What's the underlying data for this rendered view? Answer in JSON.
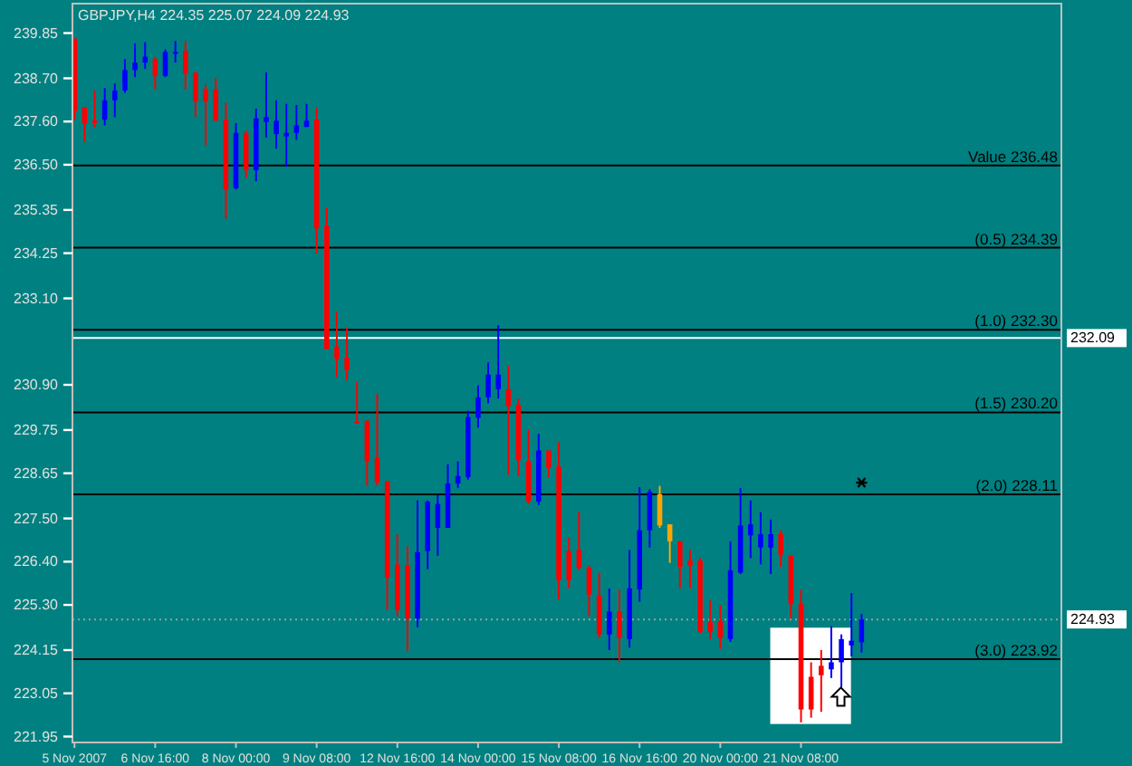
{
  "chart_data": {
    "type": "candlestick",
    "title": "GBPJPY,H4  224.35 225.07 224.09 224.93",
    "categories": [
      "5 Nov 2007",
      null,
      null,
      null,
      null,
      null,
      null,
      null,
      "6 Nov 16:00",
      null,
      null,
      null,
      null,
      null,
      null,
      null,
      "8 Nov 00:00",
      null,
      null,
      null,
      null,
      null,
      null,
      null,
      "9 Nov 08:00",
      null,
      null,
      null,
      null,
      null,
      null,
      null,
      "12 Nov 16:00",
      null,
      null,
      null,
      null,
      null,
      null,
      null,
      "14 Nov 00:00",
      null,
      null,
      null,
      null,
      null,
      null,
      null,
      "15 Nov 08:00",
      null,
      null,
      null,
      null,
      null,
      null,
      null,
      "16 Nov 16:00",
      null,
      null,
      null,
      null,
      null,
      null,
      null,
      "20 Nov 00:00",
      null,
      null,
      null,
      null,
      null,
      null,
      null,
      "21 Nov 08:00",
      null,
      null,
      null,
      null,
      null,
      null
    ],
    "ohlc": [
      [
        239.71,
        239.71,
        237.64,
        237.87
      ],
      [
        237.96,
        237.96,
        237.08,
        237.54
      ],
      [
        237.62,
        238.39,
        237.46,
        237.56
      ],
      [
        237.65,
        238.45,
        237.5,
        238.14
      ],
      [
        238.14,
        238.57,
        237.71,
        238.39
      ],
      [
        238.39,
        239.19,
        238.33,
        238.91
      ],
      [
        238.91,
        239.59,
        238.73,
        239.1
      ],
      [
        239.1,
        239.62,
        238.94,
        239.25
      ],
      [
        239.19,
        239.25,
        238.42,
        238.76
      ],
      [
        238.76,
        239.43,
        238.73,
        239.37
      ],
      [
        239.36,
        239.65,
        239.1,
        239.37
      ],
      [
        239.4,
        239.65,
        238.42,
        238.82
      ],
      [
        238.85,
        238.85,
        237.71,
        238.11
      ],
      [
        238.42,
        238.54,
        237.0,
        238.11
      ],
      [
        238.42,
        238.7,
        237.62,
        237.62
      ],
      [
        237.65,
        238.08,
        235.13,
        235.87
      ],
      [
        235.9,
        237.56,
        235.87,
        237.31
      ],
      [
        237.31,
        237.37,
        236.17,
        236.36
      ],
      [
        236.36,
        237.93,
        236.08,
        237.68
      ],
      [
        237.59,
        238.85,
        237.19,
        237.71
      ],
      [
        237.28,
        238.14,
        236.91,
        237.62
      ],
      [
        237.22,
        238.05,
        236.45,
        237.31
      ],
      [
        237.31,
        238.02,
        237.13,
        237.5
      ],
      [
        237.46,
        238.05,
        237.46,
        237.62
      ],
      [
        237.65,
        237.96,
        234.24,
        234.88
      ],
      [
        234.95,
        235.41,
        231.81,
        231.81
      ],
      [
        231.87,
        232.76,
        231.1,
        231.56
      ],
      [
        231.59,
        232.36,
        231.01,
        231.28
      ],
      [
        229.96,
        230.98,
        229.93,
        229.93
      ],
      [
        229.99,
        229.99,
        228.33,
        228.95
      ],
      [
        229.04,
        230.67,
        228.33,
        228.42
      ],
      [
        228.45,
        228.45,
        225.17,
        225.99
      ],
      [
        226.33,
        227.1,
        225.01,
        225.17
      ],
      [
        226.3,
        226.79,
        224.12,
        224.95
      ],
      [
        224.95,
        227.96,
        224.73,
        226.64
      ],
      [
        226.67,
        227.96,
        226.21,
        227.93
      ],
      [
        227.26,
        228.09,
        226.55,
        227.87
      ],
      [
        227.26,
        228.88,
        227.26,
        228.39
      ],
      [
        228.39,
        228.95,
        228.27,
        228.58
      ],
      [
        228.55,
        230.24,
        228.49,
        230.08
      ],
      [
        230.06,
        230.89,
        229.81,
        230.58
      ],
      [
        230.58,
        231.47,
        230.43,
        231.16
      ],
      [
        230.79,
        232.42,
        230.55,
        231.16
      ],
      [
        230.79,
        231.38,
        228.61,
        230.36
      ],
      [
        230.39,
        230.55,
        228.58,
        228.98
      ],
      [
        228.95,
        229.75,
        227.87,
        227.93
      ],
      [
        227.93,
        229.65,
        227.84,
        229.23
      ],
      [
        229.23,
        229.23,
        228.55,
        228.79
      ],
      [
        228.82,
        229.44,
        225.44,
        225.93
      ],
      [
        226.67,
        227.01,
        225.72,
        225.93
      ],
      [
        226.7,
        227.66,
        226.18,
        226.24
      ],
      [
        226.24,
        226.3,
        225.01,
        225.56
      ],
      [
        225.54,
        226.12,
        224.46,
        224.55
      ],
      [
        224.55,
        225.72,
        224.15,
        225.13
      ],
      [
        225.13,
        225.69,
        223.84,
        224.46
      ],
      [
        224.43,
        226.7,
        224.21,
        225.72
      ],
      [
        225.69,
        228.3,
        225.38,
        227.2
      ],
      [
        227.2,
        228.24,
        226.76,
        228.18
      ],
      [
        228.12,
        228.33,
        227.26,
        227.32
      ],
      [
        227.35,
        227.35,
        226.37,
        226.92
      ],
      [
        226.92,
        226.92,
        225.72,
        226.27
      ],
      [
        226.43,
        226.7,
        225.72,
        226.3
      ],
      [
        226.43,
        226.49,
        224.58,
        224.61
      ],
      [
        224.86,
        225.41,
        224.43,
        224.61
      ],
      [
        224.89,
        225.29,
        224.18,
        224.46
      ],
      [
        224.43,
        226.92,
        224.36,
        226.18
      ],
      [
        226.12,
        228.27,
        226.09,
        227.32
      ],
      [
        227.07,
        227.96,
        226.49,
        227.35
      ],
      [
        226.76,
        227.66,
        226.33,
        227.1
      ],
      [
        226.76,
        227.47,
        226.09,
        227.1
      ],
      [
        227.1,
        227.2,
        226.27,
        226.58
      ],
      [
        226.55,
        226.55,
        224.95,
        225.32
      ],
      [
        225.32,
        225.69,
        222.31,
        222.64
      ],
      [
        223.47,
        223.84,
        222.43,
        222.64
      ],
      [
        223.75,
        224.15,
        222.58,
        223.51
      ],
      [
        223.66,
        224.76,
        223.44,
        223.84
      ],
      [
        223.84,
        224.55,
        223.2,
        224.43
      ],
      [
        224.27,
        225.6,
        223.99,
        224.39
      ],
      [
        224.35,
        225.07,
        224.09,
        224.93
      ]
    ],
    "colors": [
      "#ff0000",
      "#ff0000",
      "#ff0000",
      "#0000ff",
      "#0000ff",
      "#0000ff",
      "#0000ff",
      "#0000ff",
      "#ff0000",
      "#0000ff",
      "#0000ff",
      "#ff0000",
      "#ff0000",
      "#ff0000",
      "#ff0000",
      "#ff0000",
      "#0000ff",
      "#ff0000",
      "#0000ff",
      "#0000ff",
      "#0000ff",
      "#0000ff",
      "#0000ff",
      "#0000ff",
      "#ff0000",
      "#ff0000",
      "#ff0000",
      "#ff0000",
      "#ff0000",
      "#ff0000",
      "#ff0000",
      "#ff0000",
      "#ff0000",
      "#ff0000",
      "#0000ff",
      "#0000ff",
      "#0000ff",
      "#0000ff",
      "#0000ff",
      "#0000ff",
      "#0000ff",
      "#0000ff",
      "#0000ff",
      "#ff0000",
      "#ff0000",
      "#ff0000",
      "#0000ff",
      "#ff0000",
      "#ff0000",
      "#ff0000",
      "#ff0000",
      "#ff0000",
      "#ff0000",
      "#0000ff",
      "#ff0000",
      "#0000ff",
      "#0000ff",
      "#0000ff",
      "#ffa500",
      "#ffa500",
      "#ff0000",
      "#ff0000",
      "#ff0000",
      "#ff0000",
      "#ff0000",
      "#0000ff",
      "#0000ff",
      "#0000ff",
      "#0000ff",
      "#0000ff",
      "#ff0000",
      "#ff0000",
      "#ff0000",
      "#ff0000",
      "#ff0000",
      "#0000ff",
      "#0000ff",
      "#0000ff",
      "#0000ff"
    ],
    "ylim": [
      221.8,
      240.6
    ],
    "yticks": [
      {
        "value": 221.95,
        "label": "221.95"
      },
      {
        "value": 223.05,
        "label": "223.05"
      },
      {
        "value": 224.15,
        "label": "224.15"
      },
      {
        "value": 225.3,
        "label": "225.30"
      },
      {
        "value": 226.4,
        "label": "226.40"
      },
      {
        "value": 227.5,
        "label": "227.50"
      },
      {
        "value": 228.65,
        "label": "228.65"
      },
      {
        "value": 229.75,
        "label": "229.75"
      },
      {
        "value": 230.9,
        "label": "230.90"
      },
      {
        "value": 233.1,
        "label": "233.10"
      },
      {
        "value": 234.25,
        "label": "234.25"
      },
      {
        "value": 235.35,
        "label": "235.35"
      },
      {
        "value": 236.5,
        "label": "236.50"
      },
      {
        "value": 237.6,
        "label": "237.60"
      },
      {
        "value": 238.7,
        "label": "238.70"
      },
      {
        "value": 239.85,
        "label": "239.85"
      }
    ],
    "ref_lines": [
      {
        "axis": "y",
        "value": 236.48,
        "label": "Value 236.48",
        "color": "#000000",
        "line_style": "solid"
      },
      {
        "axis": "y",
        "value": 234.39,
        "label": "(0.5) 234.39",
        "color": "#000000",
        "line_style": "solid"
      },
      {
        "axis": "y",
        "value": 232.3,
        "label": "(1.0) 232.30",
        "color": "#000000",
        "line_style": "solid"
      },
      {
        "axis": "y",
        "value": 230.2,
        "label": "(1.5) 230.20",
        "color": "#000000",
        "line_style": "solid"
      },
      {
        "axis": "y",
        "value": 228.11,
        "label": "(2.0) 228.11",
        "color": "#000000",
        "line_style": "solid"
      },
      {
        "axis": "y",
        "value": 223.92,
        "label": "(3.0) 223.92",
        "color": "#000000",
        "line_style": "solid"
      },
      {
        "axis": "y",
        "value": 232.09,
        "label": "232.09",
        "color": "#ffffff",
        "line_style": "solid"
      },
      {
        "axis": "y",
        "value": 224.93,
        "label": "224.93",
        "color": "#a0a0a0",
        "line_style": "dotted"
      }
    ]
  }
}
